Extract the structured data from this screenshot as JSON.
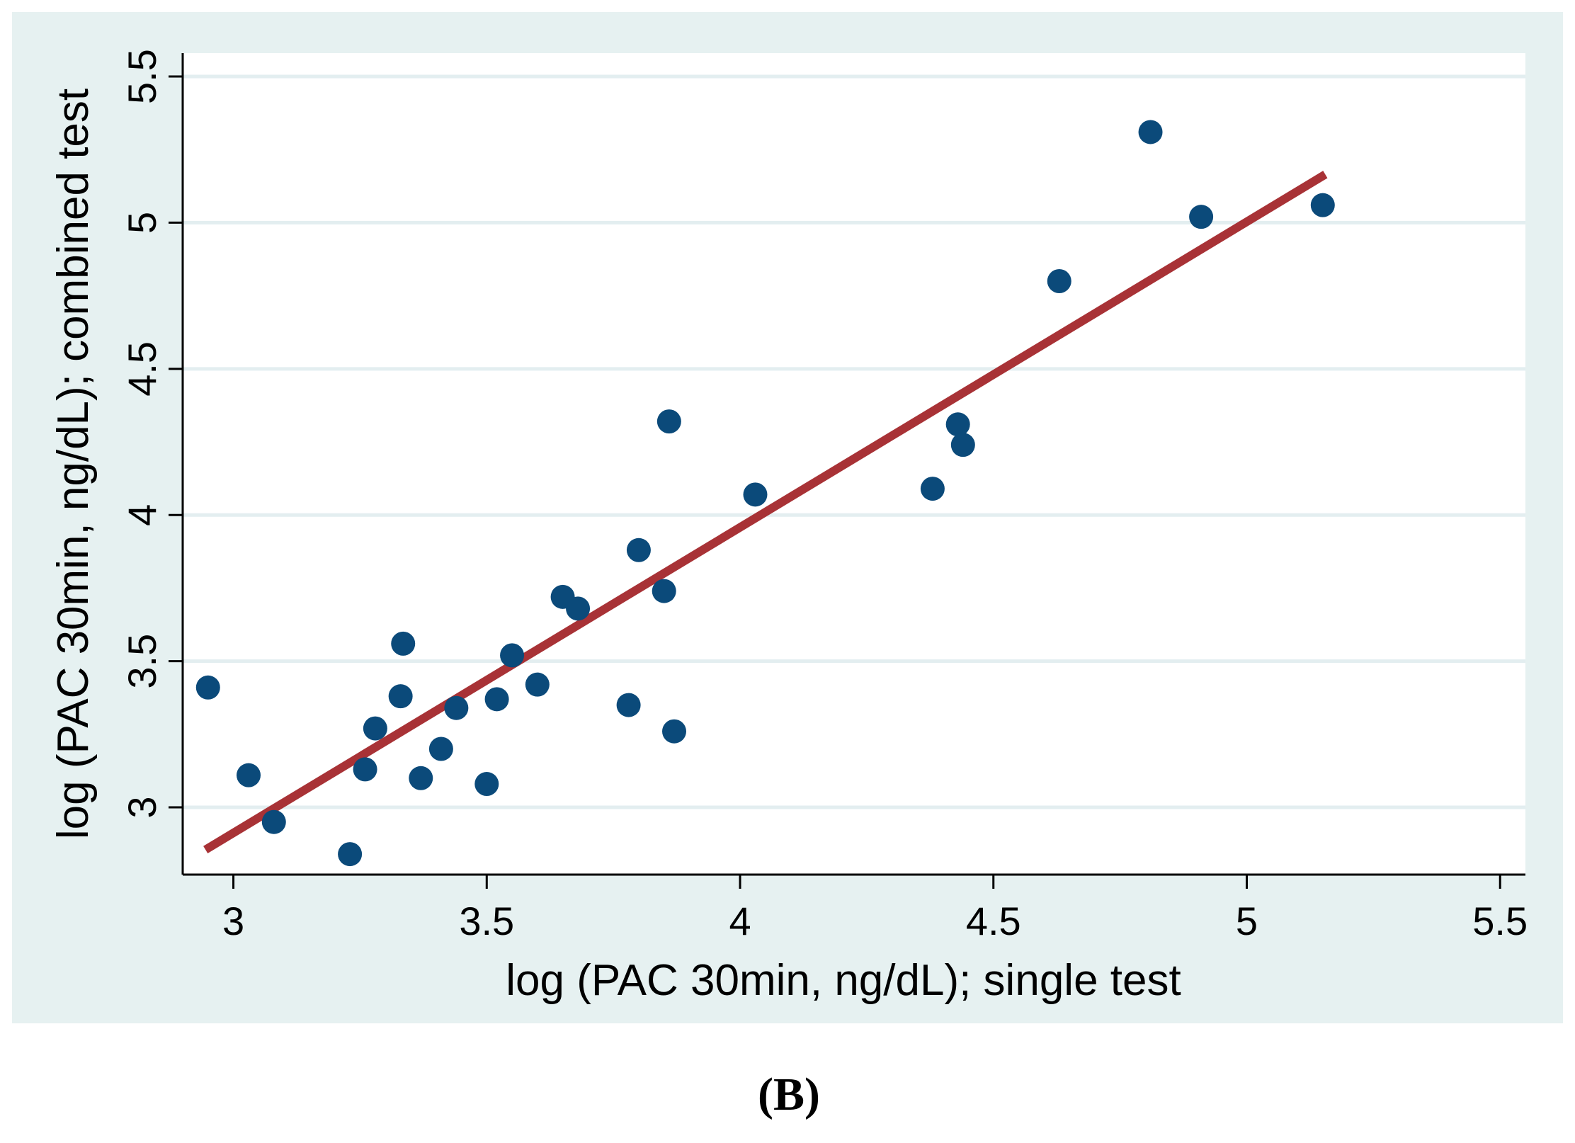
{
  "chart_data": {
    "type": "scatter",
    "xlabel": "log (PAC 30min, ng/dL); single test",
    "ylabel": "log (PAC 30min, ng/dL); combined test",
    "xlim": [
      2.9,
      5.55
    ],
    "ylim": [
      2.77,
      5.58
    ],
    "xticks": [
      3,
      3.5,
      4,
      4.5,
      5,
      5.5
    ],
    "xtick_labels": [
      "3",
      "3.5",
      "4",
      "4.5",
      "5",
      "5.5"
    ],
    "yticks": [
      3,
      3.5,
      4,
      4.5,
      5,
      5.5
    ],
    "ytick_labels": [
      "3",
      "3.5",
      "4",
      "4.5",
      "5",
      "5.5"
    ],
    "grid": true,
    "panel_label": "(B)",
    "series": [
      {
        "name": "observations",
        "kind": "points",
        "color": "#0b4a7a",
        "x": [
          2.95,
          3.03,
          3.08,
          3.23,
          3.26,
          3.28,
          3.33,
          3.335,
          3.37,
          3.41,
          3.44,
          3.5,
          3.52,
          3.55,
          3.6,
          3.65,
          3.68,
          3.78,
          3.8,
          3.85,
          3.86,
          3.87,
          4.03,
          4.38,
          4.43,
          4.44,
          4.63,
          4.81,
          4.91,
          5.15
        ],
        "y": [
          3.41,
          3.11,
          2.95,
          2.84,
          3.13,
          3.27,
          3.38,
          3.56,
          3.1,
          3.2,
          3.34,
          3.08,
          3.37,
          3.52,
          3.42,
          3.72,
          3.68,
          3.35,
          3.88,
          3.74,
          4.32,
          3.26,
          4.07,
          4.09,
          4.31,
          4.24,
          4.8,
          5.31,
          5.02,
          5.06
        ]
      },
      {
        "name": "fitted line",
        "kind": "line",
        "color": "#a83236",
        "x": [
          2.945,
          5.155
        ],
        "y": [
          2.855,
          5.165
        ]
      }
    ]
  },
  "colors": {
    "outer_background": "#e6f1f1",
    "plot_background": "#ffffff",
    "gridline": "#e3eef0",
    "axis": "#000000",
    "point": "#0b4a7a",
    "fit_line": "#a83236"
  }
}
